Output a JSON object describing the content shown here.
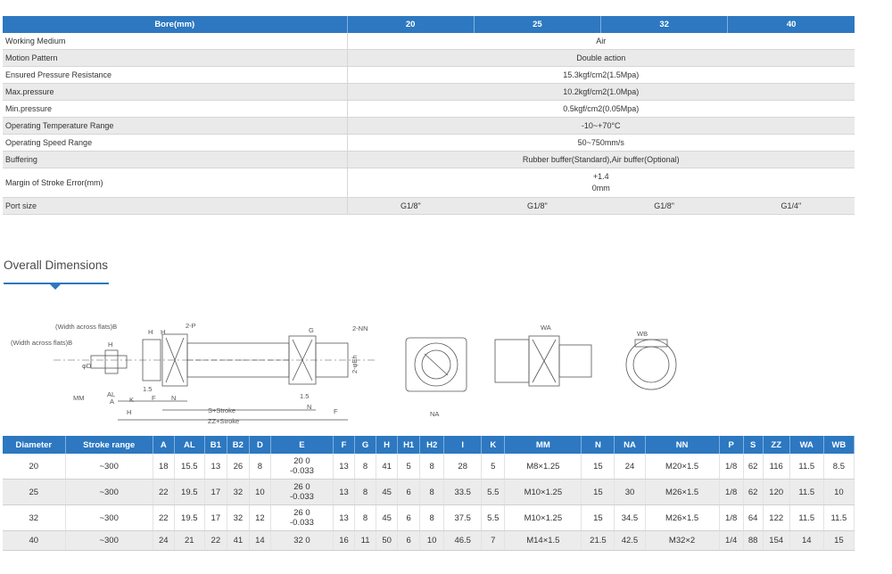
{
  "spec": {
    "header": {
      "label": "Bore(mm)",
      "bores": [
        "20",
        "25",
        "32",
        "40"
      ]
    },
    "rows": [
      {
        "label": "Working Medium",
        "value": "Air"
      },
      {
        "label": "Motion Pattern",
        "value": "Double action"
      },
      {
        "label": "Ensured Pressure Resistance",
        "value": "15.3kgf/cm2(1.5Mpa)"
      },
      {
        "label": "Max.pressure",
        "value": "10.2kgf/cm2(1.0Mpa)"
      },
      {
        "label": "Min.pressure",
        "value": "0.5kgf/cm2(0.05Mpa)"
      },
      {
        "label": "Operating Temperature Range",
        "value": "-10~+70°C"
      },
      {
        "label": "Operating Speed Range",
        "value": "50~750mm/s"
      },
      {
        "label": "Buffering",
        "value": "Rubber buffer(Standard),Air buffer(Optional)"
      }
    ],
    "stroke_error": {
      "label": "Margin of Stroke Error(mm)",
      "upper": "+1.4",
      "lower": "0mm"
    },
    "port": {
      "label": "Port size",
      "values": [
        "G1/8\"",
        "G1/8\"",
        "G1/8\"",
        "G1/4\""
      ]
    }
  },
  "section": {
    "title": "Overall Dimensions"
  },
  "drawing": {
    "labels": {
      "wf_b2": "(Width across flats)B",
      "wf_b1": "(Width across flats)B",
      "h_top": "H",
      "h1": "H",
      "h1b": "H",
      "two_p": "2-P",
      "g": "G",
      "two_nn": "2-NN",
      "d_sym": "φD",
      "mm": "MM",
      "al": "AL",
      "a": "A",
      "k": "K",
      "f": "F",
      "n": "N",
      "one_five_left": "1.5",
      "one_five_right": "1.5",
      "h_bottom": "H",
      "s_stroke": "S+Stroke",
      "zz_stroke": "ZZ+Stroke",
      "n_right": "N",
      "f_right": "F",
      "eh": "2-φEh",
      "na": "NA",
      "wa": "WA",
      "wb": "WB"
    }
  },
  "dims": {
    "headers": [
      "Diameter",
      "Stroke range",
      "A",
      "AL",
      "B1",
      "B2",
      "D",
      "E",
      "F",
      "G",
      "H",
      "H1",
      "H2",
      "I",
      "K",
      "MM",
      "N",
      "NA",
      "NN",
      "P",
      "S",
      "ZZ",
      "WA",
      "WB"
    ],
    "rows": [
      [
        "20",
        "~300",
        "18",
        "15.5",
        "13",
        "26",
        "8",
        "20 0\n-0.033",
        "13",
        "8",
        "41",
        "5",
        "8",
        "28",
        "5",
        "M8×1.25",
        "15",
        "24",
        "M20×1.5",
        "1/8",
        "62",
        "116",
        "11.5",
        "8.5"
      ],
      [
        "25",
        "~300",
        "22",
        "19.5",
        "17",
        "32",
        "10",
        "26 0\n-0.033",
        "13",
        "8",
        "45",
        "6",
        "8",
        "33.5",
        "5.5",
        "M10×1.25",
        "15",
        "30",
        "M26×1.5",
        "1/8",
        "62",
        "120",
        "11.5",
        "10"
      ],
      [
        "32",
        "~300",
        "22",
        "19.5",
        "17",
        "32",
        "12",
        "26 0\n-0.033",
        "13",
        "8",
        "45",
        "6",
        "8",
        "37.5",
        "5.5",
        "M10×1.25",
        "15",
        "34.5",
        "M26×1.5",
        "1/8",
        "64",
        "122",
        "11.5",
        "11.5"
      ],
      [
        "40",
        "~300",
        "24",
        "21",
        "22",
        "41",
        "14",
        "32 0",
        "16",
        "11",
        "50",
        "6",
        "10",
        "46.5",
        "7",
        "M14×1.5",
        "21.5",
        "42.5",
        "M32×2",
        "1/4",
        "88",
        "154",
        "14",
        "15"
      ]
    ]
  },
  "colors": {
    "accent": "#2d78c0",
    "stripe": "#eaeaea"
  }
}
